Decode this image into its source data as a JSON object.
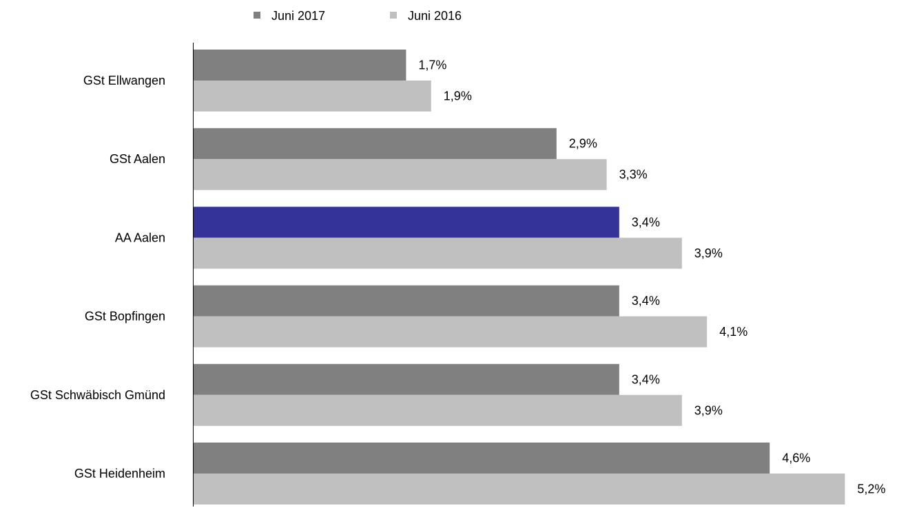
{
  "chart_data": {
    "type": "bar",
    "orientation": "horizontal",
    "categories": [
      "GSt Ellwangen",
      "GSt Aalen",
      "AA Aalen",
      "GSt Bopfingen",
      "GSt Schwäbisch Gmünd",
      "GSt Heidenheim"
    ],
    "series": [
      {
        "name": "Juni 2017",
        "color": "#808080",
        "values": [
          1.7,
          2.9,
          3.4,
          3.4,
          3.4,
          4.6
        ],
        "labels": [
          "1,7%",
          "2,9%",
          "3,4%",
          "3,4%",
          "3,4%",
          "4,6%"
        ]
      },
      {
        "name": "Juni 2016",
        "color": "#c0c0c0",
        "values": [
          1.9,
          3.3,
          3.9,
          4.1,
          3.9,
          5.2
        ],
        "labels": [
          "1,9%",
          "3,3%",
          "3,9%",
          "4,1%",
          "3,9%",
          "5,2%"
        ]
      }
    ],
    "highlight": {
      "category": "AA Aalen",
      "series": "Juni 2017",
      "color": "#333399"
    },
    "xlim": [
      0,
      5.2
    ],
    "grid": false,
    "legend_position": "top",
    "title": "",
    "xlabel": "",
    "ylabel": ""
  }
}
